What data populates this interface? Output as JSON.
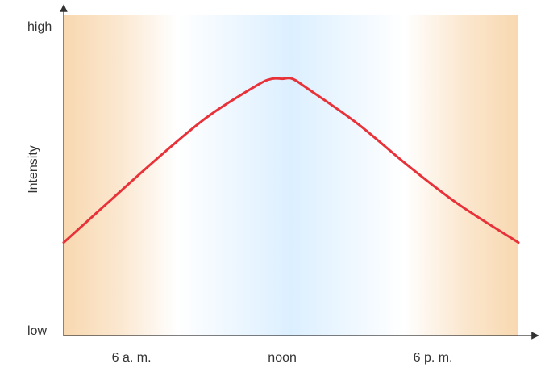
{
  "chart_data": {
    "type": "line",
    "title": "",
    "ylabel": "Intensity",
    "xlabel": "",
    "y_level_labels": {
      "top": "high",
      "bottom": "low"
    },
    "x_ticks": [
      {
        "label": "6 a. m.",
        "hour": 6
      },
      {
        "label": "noon",
        "hour": 12
      },
      {
        "label": "6 p. m.",
        "hour": 18
      }
    ],
    "xlim": [
      3.3,
      21.4
    ],
    "ylim": [
      0,
      1
    ],
    "series": [
      {
        "color": "#e8323a",
        "x": [
          3.3,
          5,
          7,
          9,
          11,
          11.6,
          12,
          12.4,
          13,
          15,
          17,
          19,
          21.4
        ],
        "y": [
          0.29,
          0.41,
          0.55,
          0.68,
          0.78,
          0.8,
          0.8,
          0.8,
          0.77,
          0.66,
          0.53,
          0.41,
          0.29
        ]
      }
    ],
    "background": {
      "description_colors": {
        "edge": "#f8d8b0",
        "center": "#dcefff"
      }
    },
    "grid": false,
    "legend": "none"
  }
}
